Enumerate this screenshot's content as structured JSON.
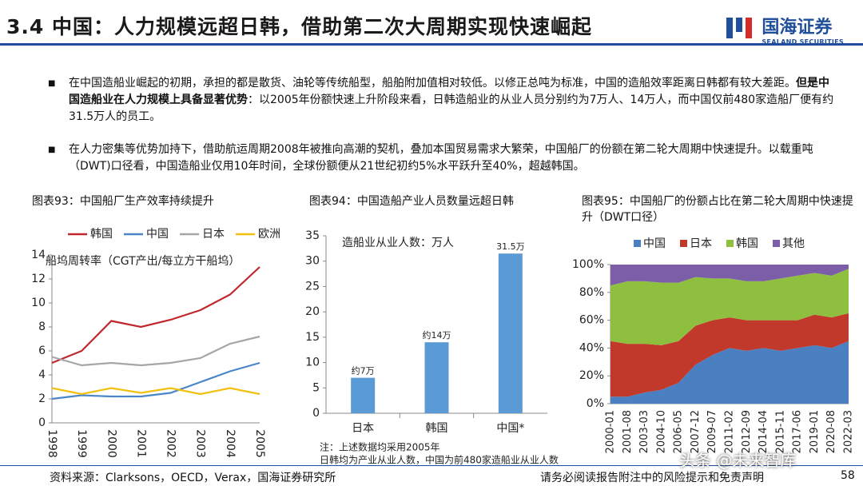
{
  "header": {
    "title": "3.4 中国：人力规模远超日韩，借助第二次大周期实现快速崛起",
    "logo_cn": "国海证券",
    "logo_en": "SEALAND SECURITIES"
  },
  "bullets": [
    [
      "在中国造船业崛起的初期，承担的都是散货、油轮等传统船型，船舶附加值相对较低。以修正总吨为标准，中国的造船效率距离日韩都有较大差距。",
      "但是中国造船业在人力规模上具备显著优势",
      "：以2005年份额快速上升阶段来看，日韩造船业的从业人员分别约为7万人、14万人，而中国仅前480家造船厂便有约31.5万人的员工。"
    ],
    [
      "在人力密集等优势加持下，借助航运周期2008年被推向高潮的契机，叠加本国贸易需求大繁荣，中国船厂的份额在第二轮大周期中快速提升。以载重吨（DWT)口径看，中国造船业仅用10年时间，全球份额便从21世纪初约5%水平跃升至40%，超越韩国。"
    ]
  ],
  "chart_data": [
    {
      "type": "line",
      "title": "图表93：中国船厂生产效率持续提升",
      "y_label": "船坞周转率（CGT产出/每立方干船坞）",
      "categories": [
        "1998",
        "1999",
        "2000",
        "2001",
        "2002",
        "2003",
        "2004",
        "2005"
      ],
      "series": [
        {
          "name": "韩国",
          "color": "#c0272d",
          "values": [
            5,
            6,
            8.5,
            8,
            8.6,
            9.4,
            10.7,
            13
          ]
        },
        {
          "name": "中国",
          "color": "#4a86c8",
          "values": [
            2,
            2.3,
            2.2,
            2.2,
            2.5,
            3.4,
            4.3,
            5
          ]
        },
        {
          "name": "日本",
          "color": "#a6a6a6",
          "values": [
            5.5,
            4.8,
            5,
            4.8,
            5,
            5.4,
            6.6,
            7.2
          ]
        },
        {
          "name": "欧洲",
          "color": "#f2c10f",
          "values": [
            2.9,
            2.4,
            2.9,
            2.5,
            2.9,
            2.4,
            2.9,
            2.4
          ]
        }
      ],
      "ylim": [
        0,
        14
      ],
      "yticks": [
        0,
        2,
        4,
        6,
        8,
        10,
        12,
        14
      ],
      "legend": "top"
    },
    {
      "type": "bar",
      "title": "图表94：中国造船产业人员数量远超日韩",
      "annotation": "造船业从业人数：万人",
      "categories": [
        "日本",
        "韩国",
        "中国*"
      ],
      "values": [
        7,
        14,
        31.5
      ],
      "value_labels": [
        "约7万",
        "约14万",
        "31.5万"
      ],
      "color": "#5b9bd5",
      "ylim": [
        0,
        35
      ],
      "yticks": [
        0,
        5,
        10,
        15,
        20,
        25,
        30,
        35
      ],
      "notes": [
        "注：上述数据均采用2005年",
        "日韩均为产业从业人数，中国为前480家造船业从业人数"
      ]
    },
    {
      "type": "stacked_area",
      "title": "图表95：中国船厂的份额占比在第二轮大周期中快速提升（DWT口径）",
      "categories": [
        "2000-01",
        "2001-08",
        "2003-03",
        "2004-10",
        "2006-05",
        "2007-12",
        "2009-07",
        "2011-02",
        "2012-09",
        "2014-04",
        "2015-11",
        "2017-06",
        "2019-01",
        "2020-08",
        "2022-03"
      ],
      "series": [
        {
          "name": "中国",
          "color": "#4a7fc1",
          "values": [
            5,
            5,
            8,
            10,
            15,
            28,
            35,
            40,
            38,
            40,
            38,
            40,
            42,
            40,
            45
          ]
        },
        {
          "name": "日本",
          "color": "#c0392b",
          "values": [
            40,
            38,
            35,
            32,
            30,
            28,
            25,
            22,
            22,
            20,
            22,
            20,
            22,
            22,
            20
          ]
        },
        {
          "name": "韩国",
          "color": "#8fbf3f",
          "values": [
            40,
            45,
            45,
            45,
            42,
            35,
            30,
            28,
            28,
            28,
            30,
            32,
            30,
            30,
            32
          ]
        },
        {
          "name": "其他",
          "color": "#7b5ea7",
          "values": [
            15,
            12,
            12,
            13,
            13,
            9,
            10,
            10,
            12,
            12,
            10,
            8,
            6,
            8,
            3
          ]
        }
      ],
      "ylim": [
        0,
        100
      ],
      "yticks": [
        {
          "value": 0,
          "label": "0%"
        },
        {
          "value": 20,
          "label": "20%"
        },
        {
          "value": 40,
          "label": "40%"
        },
        {
          "value": 60,
          "label": "60%"
        },
        {
          "value": 80,
          "label": "80%"
        },
        {
          "value": 100,
          "label": "100%"
        }
      ],
      "legend": "top"
    }
  ],
  "footer": {
    "source": "资料来源：Clarksons，OECD，Verax，国海证券研究所",
    "disclaimer": "请务必阅读报告附注中的风险提示和免责声明",
    "watermark": "头条 @未来智库",
    "page": "58"
  }
}
